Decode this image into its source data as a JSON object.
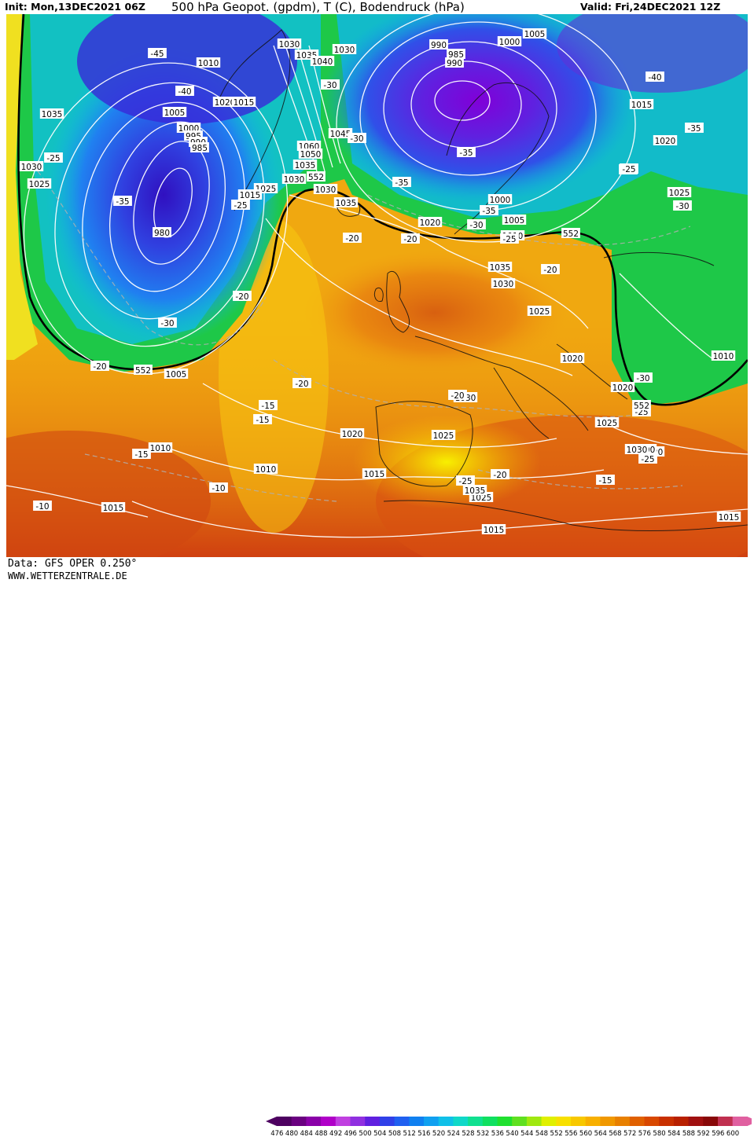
{
  "header": {
    "init": "Init: Mon,13DEC2021 06Z",
    "title": "500 hPa Geopot. (gpdm), T (C), Bodendruck (hPa)",
    "valid": "Valid: Fri,24DEC2021 12Z"
  },
  "footer": {
    "data_source": "Data: GFS OPER 0.250°",
    "website": "WWW.WETTERZENTRALE.DE"
  },
  "colorbar": {
    "values": [
      "476",
      "480",
      "484",
      "488",
      "492",
      "496",
      "500",
      "504",
      "508",
      "512",
      "516",
      "520",
      "524",
      "528",
      "532",
      "536",
      "540",
      "544",
      "548",
      "552",
      "556",
      "560",
      "564",
      "568",
      "572",
      "576",
      "580",
      "584",
      "588",
      "592",
      "596",
      "600"
    ],
    "colors": [
      "#4d0060",
      "#6a0080",
      "#8a00a8",
      "#b000c8",
      "#c040e0",
      "#9030e0",
      "#6020e0",
      "#3040e8",
      "#2060f0",
      "#1080f0",
      "#10a0f0",
      "#10c0e8",
      "#10d8c8",
      "#10e090",
      "#10e060",
      "#20e030",
      "#60e020",
      "#a0e810",
      "#e0f000",
      "#f8e000",
      "#f8c800",
      "#f8b000",
      "#f09800",
      "#e88000",
      "#e06000",
      "#d84800",
      "#c83000",
      "#b82000",
      "#a01010",
      "#880808",
      "#c03050",
      "#e060a0"
    ]
  },
  "map": {
    "temperature_labels": [
      "-45",
      "-40",
      "-40",
      "-40",
      "-35",
      "-35",
      "-30",
      "-25",
      "-25",
      "-25",
      "-20",
      "-20",
      "-20",
      "-20",
      "-20",
      "-15",
      "-15",
      "-15",
      "-10",
      "-10",
      "-35",
      "-30",
      "-35",
      "-35",
      "-30",
      "-25",
      "-30",
      "-20",
      "-25",
      "-25",
      "-20",
      "-30",
      "-25",
      "-20",
      "-30",
      "-15",
      "-25"
    ],
    "pressure_labels": [
      "1025",
      "1010",
      "1005",
      "1000",
      "995",
      "990",
      "985",
      "980",
      "1035",
      "1030",
      "1025",
      "1030",
      "1035",
      "1040",
      "1030",
      "1020",
      "1015",
      "1060",
      "1050",
      "1045",
      "1035",
      "1030",
      "1025",
      "1030",
      "1035",
      "1015",
      "1020",
      "1000",
      "1005",
      "1010",
      "990",
      "985",
      "990",
      "1000",
      "1005",
      "1015",
      "1020",
      "1025",
      "1025",
      "1030",
      "1035",
      "1035",
      "1030",
      "1025",
      "1020",
      "1020",
      "1015",
      "1010",
      "1005",
      "1010",
      "1020",
      "1025",
      "1030",
      "1015",
      "1010",
      "1015",
      "1015",
      "1025",
      "1020",
      "1000",
      "1035",
      "1010",
      "1025",
      "1030",
      "1015"
    ],
    "contour_552": [
      "552",
      "552",
      "552",
      "552"
    ],
    "colors": {
      "background_warm": "#f0a010",
      "cold_purple": "#7020d0",
      "cold_blue": "#2050e0",
      "cyan": "#10c0e0",
      "green": "#20d040",
      "yellow": "#f0e010",
      "orange": "#e88010",
      "deep_orange": "#e06010",
      "red": "#c83010"
    }
  }
}
